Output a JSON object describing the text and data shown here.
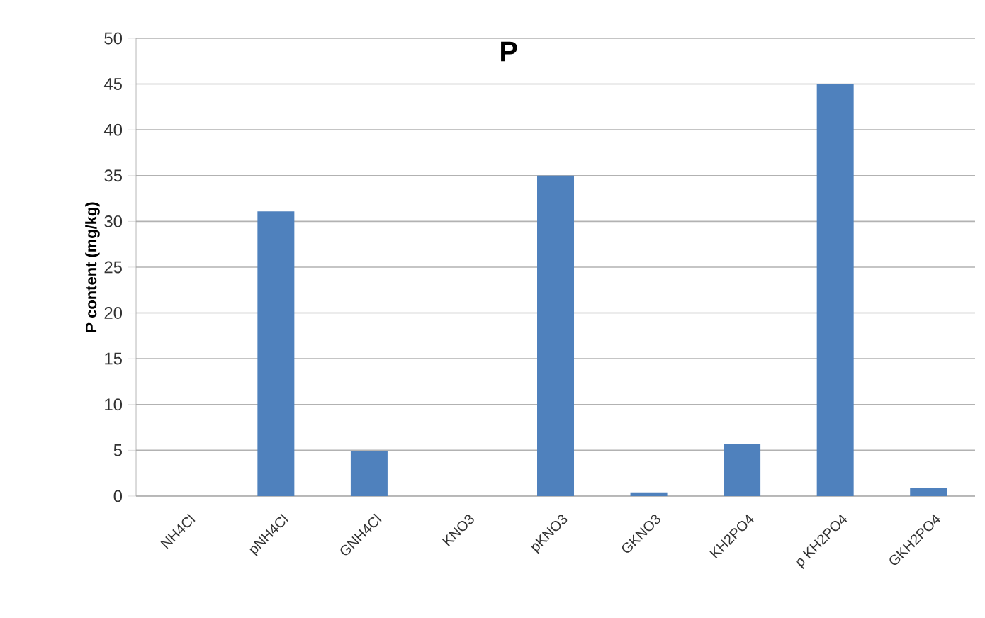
{
  "chart_data": {
    "type": "bar",
    "title": "P",
    "ylabel": "P content (mg/kg)",
    "categories": [
      "NH4Cl",
      "pNH4Cl",
      "GNH4Cl",
      "KNO3",
      "pKNO3",
      "GKNO3",
      "KH2PO4",
      "p KH2PO4",
      "GKH2PO4"
    ],
    "values": [
      0,
      31.1,
      4.9,
      0,
      35,
      0.4,
      5.7,
      45,
      0.9
    ],
    "color": "#4f81bd",
    "ylim": [
      0,
      50
    ],
    "yticks": [
      0,
      5,
      10,
      15,
      20,
      25,
      30,
      35,
      40,
      45,
      50
    ],
    "grid": "y"
  }
}
